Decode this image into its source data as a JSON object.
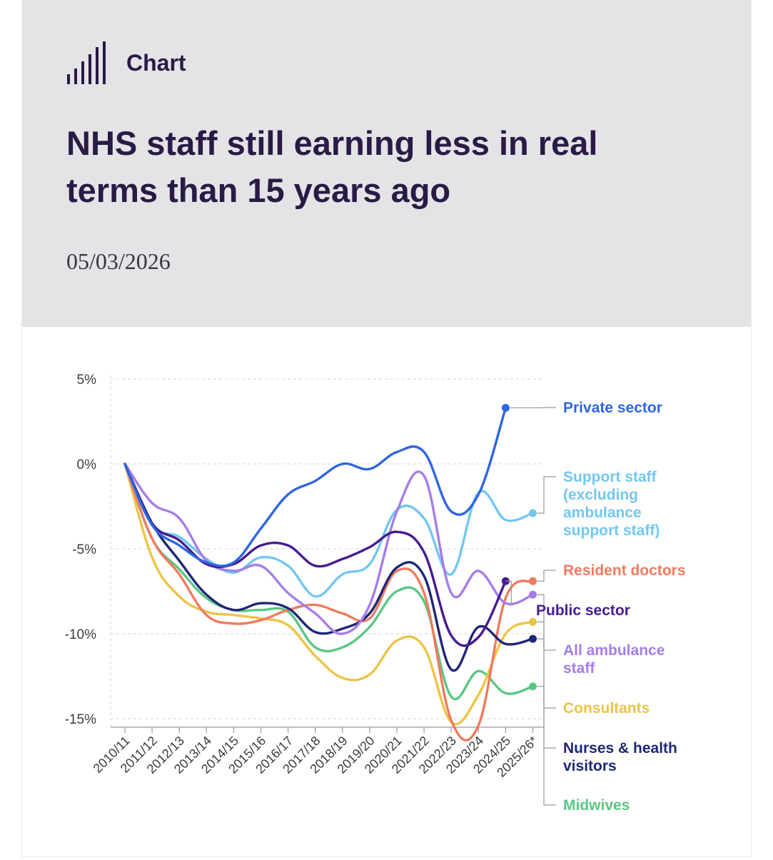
{
  "header": {
    "section_label": "Chart",
    "title": "NHS staff still earning less in real terms than 15 years ago",
    "date": "05/03/2026"
  },
  "icons": {
    "chart_icon": "bar-chart-icon"
  },
  "chart_data": {
    "type": "line",
    "title": "NHS staff still earning less in real terms than 15 years ago",
    "xlabel": "",
    "ylabel": "",
    "x": [
      "2010/11",
      "2011/12",
      "2012/13",
      "2013/14",
      "2014/15",
      "2015/16",
      "2016/17",
      "2017/18",
      "2018/19",
      "2019/20",
      "2020/21",
      "2021/22",
      "2022/23",
      "2023/24",
      "2024/25",
      "2025/26*"
    ],
    "y_ticks": [
      5,
      0,
      -5,
      -10,
      -15
    ],
    "y_tick_labels": [
      "5%",
      "0%",
      "-5%",
      "-10%",
      "-15%"
    ],
    "ylim": [
      -15.5,
      5
    ],
    "grid": "dashed horizontal",
    "legend": "right, labels at line ends",
    "series": [
      {
        "name": "Private sector",
        "color": "#2e66e0",
        "values": [
          0,
          -3.6,
          -4.8,
          -5.8,
          -5.8,
          -3.8,
          -1.8,
          -1.0,
          0.0,
          -0.3,
          0.7,
          0.7,
          -2.8,
          -1.8,
          3.3,
          null
        ]
      },
      {
        "name": "Support staff (excluding ambulance support staff)",
        "color": "#73c7ef",
        "values": [
          0,
          -3.6,
          -4.3,
          -5.6,
          -6.4,
          -5.5,
          -6.0,
          -7.8,
          -6.5,
          -5.9,
          -2.7,
          -3.2,
          -6.5,
          -1.7,
          -3.3,
          -2.9
        ]
      },
      {
        "name": "Resident doctors",
        "color": "#ef7b5f",
        "values": [
          0,
          -4.4,
          -6.5,
          -8.9,
          -9.4,
          -9.2,
          -8.6,
          -8.3,
          -8.8,
          -9.1,
          -6.3,
          -7.6,
          -15.1,
          -15.4,
          -7.9,
          -6.9
        ]
      },
      {
        "name": "Public sector",
        "color": "#461b8f",
        "values": [
          0,
          -3.5,
          -4.5,
          -5.9,
          -5.9,
          -4.8,
          -4.8,
          -6.0,
          -5.6,
          -4.9,
          -4.0,
          -5.2,
          -10.1,
          -10.2,
          -6.9,
          null
        ]
      },
      {
        "name": "All ambulance staff",
        "color": "#a67de8",
        "values": [
          0,
          -2.3,
          -3.2,
          -5.7,
          -6.3,
          -6.0,
          -7.6,
          -8.8,
          -10.0,
          -8.3,
          -2.8,
          -0.7,
          -7.6,
          -6.3,
          -8.2,
          -7.7
        ]
      },
      {
        "name": "Consultants",
        "color": "#ecc445",
        "values": [
          0,
          -5.5,
          -7.8,
          -8.7,
          -8.9,
          -9.1,
          -9.5,
          -11.3,
          -12.6,
          -12.4,
          -10.4,
          -10.8,
          -15.2,
          -13.6,
          -10.0,
          -9.3
        ]
      },
      {
        "name": "Nurses & health visitors",
        "color": "#1e2775",
        "values": [
          0,
          -3.5,
          -5.7,
          -7.7,
          -8.6,
          -8.2,
          -8.5,
          -9.9,
          -9.7,
          -8.8,
          -6.1,
          -6.6,
          -12.1,
          -9.6,
          -10.6,
          -10.3
        ]
      },
      {
        "name": "Midwives",
        "color": "#5ac783",
        "values": [
          0,
          -4.4,
          -6.2,
          -7.9,
          -8.6,
          -8.6,
          -8.7,
          -10.8,
          -10.8,
          -9.6,
          -7.5,
          -8.1,
          -13.7,
          -12.2,
          -13.5,
          -13.1
        ]
      }
    ]
  }
}
